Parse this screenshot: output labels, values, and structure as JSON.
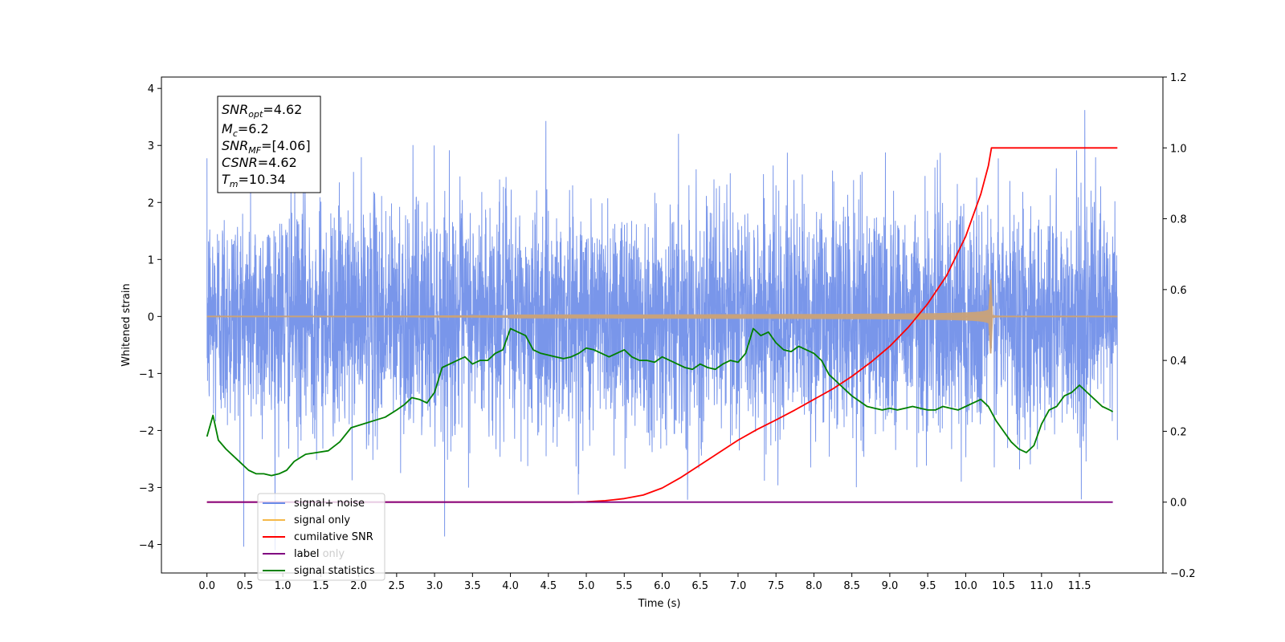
{
  "chart_data": {
    "type": "line",
    "xlabel": "Time (s)",
    "ylabel": "Whitened strain",
    "xlim": [
      -0.6,
      12.6
    ],
    "ylim": [
      -4.5,
      4.2
    ],
    "y2lim": [
      -0.2,
      1.2
    ],
    "grid": false,
    "legend_position": "lower-left",
    "x_ticks": [
      "0.0",
      "0.5",
      "1.0",
      "1.5",
      "2.0",
      "2.5",
      "3.0",
      "3.5",
      "4.0",
      "4.5",
      "5.0",
      "5.5",
      "6.0",
      "6.5",
      "7.0",
      "7.5",
      "8.0",
      "8.5",
      "9.0",
      "9.5",
      "10.0",
      "10.5",
      "11.0",
      "11.5"
    ],
    "y_ticks": [
      "4",
      "3",
      "2",
      "1",
      "0",
      "−1",
      "−2",
      "−3",
      "−4"
    ],
    "y2_ticks": [
      "1.2",
      "1.0",
      "0.8",
      "0.6",
      "0.4",
      "0.2",
      "0.0",
      "−0.2"
    ],
    "info_box": {
      "snr_opt_base": "SNR",
      "snr_opt_sub": "opt",
      "snr_opt_val": "=4.62",
      "mc_base": "M",
      "mc_sub": "c",
      "mc_val": "=6.2",
      "snr_mf_base": "SNR",
      "snr_mf_sub": "MF",
      "snr_mf_val": "=[4.06]",
      "csnr_base": "CSNR",
      "csnr_val": "=4.62",
      "tm_base": "T",
      "tm_sub": "m",
      "tm_val": "=10.34"
    },
    "series": [
      {
        "name": "signal+ noise",
        "color": "#6a8be8",
        "axis": "left",
        "kind": "noise",
        "x_range": [
          0,
          12
        ],
        "amplitude_rms": 1.0,
        "y_max": 3.8,
        "y_min": -4.1
      },
      {
        "name": "signal only",
        "color": "#f5b94a",
        "axis": "left",
        "kind": "chirp",
        "merger_time": 10.34,
        "peak_amplitude": 0.65
      },
      {
        "name": "cumilative SNR",
        "color": "#ff0000",
        "axis": "right",
        "x": [
          0,
          4.8,
          5.0,
          5.25,
          5.5,
          5.75,
          6.0,
          6.25,
          6.5,
          6.75,
          7.0,
          7.25,
          7.5,
          7.75,
          8.0,
          8.25,
          8.5,
          8.75,
          9.0,
          9.25,
          9.5,
          9.75,
          10.0,
          10.1,
          10.2,
          10.3,
          10.34,
          12.0
        ],
        "y": [
          0,
          0,
          0.001,
          0.004,
          0.01,
          0.02,
          0.04,
          0.07,
          0.105,
          0.14,
          0.175,
          0.205,
          0.232,
          0.26,
          0.29,
          0.32,
          0.355,
          0.395,
          0.44,
          0.495,
          0.56,
          0.64,
          0.75,
          0.81,
          0.87,
          0.95,
          1.0,
          1.0
        ]
      },
      {
        "name": "label",
        "color": "#800080",
        "axis": "right",
        "x": [
          0,
          11.94
        ],
        "y": [
          0,
          0
        ]
      },
      {
        "name": "label only",
        "color": "#cccccc",
        "axis": "right",
        "x": [],
        "y": []
      },
      {
        "name": "signal statistics",
        "color": "#008000",
        "axis": "right",
        "x": [
          0.0,
          0.08,
          0.15,
          0.25,
          0.35,
          0.45,
          0.55,
          0.65,
          0.75,
          0.85,
          0.95,
          1.05,
          1.15,
          1.3,
          1.45,
          1.6,
          1.75,
          1.9,
          2.05,
          2.2,
          2.35,
          2.5,
          2.6,
          2.7,
          2.8,
          2.9,
          3.0,
          3.1,
          3.2,
          3.3,
          3.4,
          3.5,
          3.6,
          3.7,
          3.8,
          3.9,
          4.0,
          4.1,
          4.2,
          4.3,
          4.4,
          4.5,
          4.6,
          4.7,
          4.8,
          4.9,
          5.0,
          5.1,
          5.2,
          5.3,
          5.4,
          5.5,
          5.6,
          5.7,
          5.8,
          5.9,
          6.0,
          6.1,
          6.2,
          6.3,
          6.4,
          6.5,
          6.6,
          6.7,
          6.8,
          6.9,
          7.0,
          7.1,
          7.2,
          7.3,
          7.4,
          7.5,
          7.6,
          7.7,
          7.8,
          7.9,
          8.0,
          8.1,
          8.2,
          8.3,
          8.4,
          8.5,
          8.6,
          8.7,
          8.8,
          8.9,
          9.0,
          9.1,
          9.2,
          9.3,
          9.4,
          9.5,
          9.6,
          9.7,
          9.8,
          9.9,
          10.0,
          10.1,
          10.2,
          10.3,
          10.4,
          10.5,
          10.6,
          10.7,
          10.8,
          10.9,
          11.0,
          11.1,
          11.2,
          11.3,
          11.4,
          11.5,
          11.6,
          11.7,
          11.8,
          11.9,
          11.94
        ],
        "y": [
          0.185,
          0.245,
          0.175,
          0.15,
          0.13,
          0.11,
          0.09,
          0.08,
          0.08,
          0.075,
          0.08,
          0.09,
          0.115,
          0.135,
          0.14,
          0.145,
          0.17,
          0.21,
          0.22,
          0.23,
          0.24,
          0.26,
          0.275,
          0.295,
          0.29,
          0.28,
          0.31,
          0.38,
          0.39,
          0.4,
          0.41,
          0.39,
          0.4,
          0.4,
          0.42,
          0.43,
          0.49,
          0.48,
          0.47,
          0.43,
          0.42,
          0.415,
          0.41,
          0.405,
          0.41,
          0.42,
          0.435,
          0.43,
          0.42,
          0.41,
          0.42,
          0.43,
          0.41,
          0.4,
          0.4,
          0.395,
          0.41,
          0.4,
          0.39,
          0.38,
          0.375,
          0.39,
          0.38,
          0.375,
          0.39,
          0.4,
          0.395,
          0.42,
          0.49,
          0.47,
          0.48,
          0.45,
          0.43,
          0.425,
          0.44,
          0.43,
          0.42,
          0.4,
          0.36,
          0.34,
          0.32,
          0.3,
          0.285,
          0.27,
          0.265,
          0.26,
          0.265,
          0.26,
          0.265,
          0.27,
          0.265,
          0.26,
          0.26,
          0.27,
          0.265,
          0.26,
          0.27,
          0.28,
          0.29,
          0.27,
          0.23,
          0.2,
          0.17,
          0.15,
          0.14,
          0.16,
          0.22,
          0.26,
          0.27,
          0.3,
          0.31,
          0.33,
          0.31,
          0.29,
          0.27,
          0.26,
          0.255
        ]
      }
    ]
  }
}
